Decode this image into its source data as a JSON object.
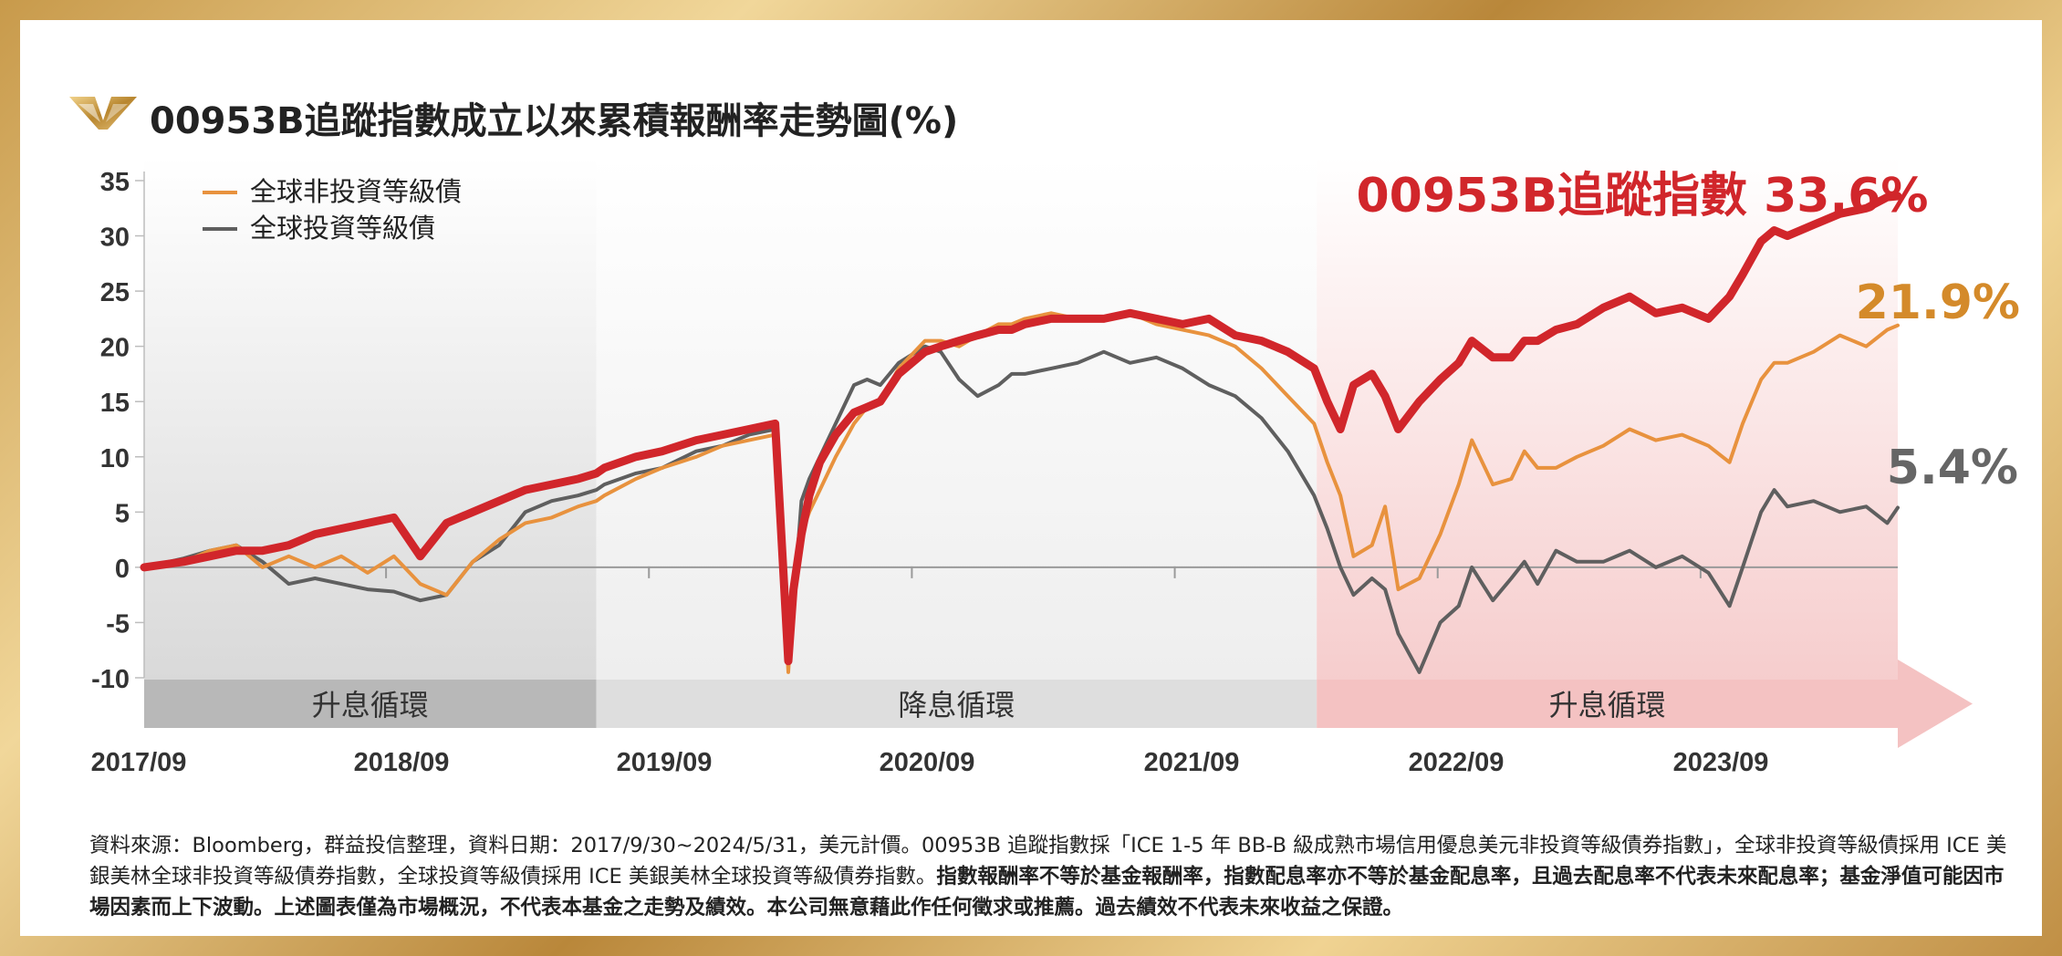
{
  "title": "00953B追蹤指數成立以來累積報酬率走勢圖(%)",
  "footnote": {
    "normal": "資料來源：Bloomberg，群益投信整理，資料日期：2017/9/30~2024/5/31，美元計價。00953B 追蹤指數採「ICE 1-5 年 BB-B 級成熟市場信用優息美元非投資等級債券指數」，全球非投資等級債採用 ICE 美銀美林全球非投資等級債券指數，全球投資等級債採用 ICE 美銀美林全球投資等級債券指數。",
    "bold": "指數報酬率不等於基金報酬率，指數配息率亦不等於基金配息率，且過去配息率不代表未來配息率；基金淨值可能因市場因素而上下波動。上述圖表僅為市場概況，不代表本基金之走勢及績效。本公司無意藉此作任何徵求或推薦。過去績效不代表未來收益之保證。"
  },
  "colors": {
    "index": "#d1262b",
    "high_yield": "#e8923e",
    "investment_grade": "#5f5f5f",
    "hike_zone": "#ececec",
    "cut_zone": "#f4f4f4",
    "red_zone": "#f7d3d3"
  },
  "chart_data": {
    "type": "line",
    "title": "00953B追蹤指數成立以來累積報酬率走勢圖(%)",
    "ylim": [
      -10,
      35
    ],
    "yticks": [
      "35",
      "30",
      "25",
      "20",
      "15",
      "10",
      "5",
      "0",
      "-5",
      "-10"
    ],
    "xlim": [
      2017.75,
      2024.42
    ],
    "xticks": [
      {
        "label": "2017/09",
        "x": 2017.67
      },
      {
        "label": "2018/09",
        "x": 2018.67
      },
      {
        "label": "2019/09",
        "x": 2019.67
      },
      {
        "label": "2020/09",
        "x": 2020.67
      },
      {
        "label": "2021/09",
        "x": 2021.67
      },
      {
        "label": "2022/09",
        "x": 2022.67
      },
      {
        "label": "2023/09",
        "x": 2023.67
      }
    ],
    "legend": {
      "position": "top-left",
      "entries": [
        "全球非投資等級債",
        "全球投資等級債"
      ]
    },
    "regimes": [
      {
        "label": "升息循環",
        "start": 2017.75,
        "end": 2019.47,
        "style": "hike"
      },
      {
        "label": "降息循環",
        "start": 2019.47,
        "end": 2022.21,
        "style": "cut"
      },
      {
        "label": "升息循環",
        "start": 2022.21,
        "end": 2024.42,
        "style": "hike-red"
      }
    ],
    "end_labels": [
      {
        "series": "00953B追蹤指數",
        "text": "00953B追蹤指數 33.6%"
      },
      {
        "series": "全球非投資等級債",
        "text": "21.9%"
      },
      {
        "series": "全球投資等級債",
        "text": "5.4%"
      }
    ],
    "series": [
      {
        "name": "全球投資等級債",
        "key": "investment_grade",
        "x": [
          2017.75,
          2017.9,
          2018.0,
          2018.1,
          2018.2,
          2018.3,
          2018.4,
          2018.5,
          2018.6,
          2018.7,
          2018.8,
          2018.9,
          2019.0,
          2019.1,
          2019.2,
          2019.3,
          2019.4,
          2019.47,
          2019.5,
          2019.62,
          2019.72,
          2019.85,
          2019.95,
          2020.05,
          2020.15,
          2020.2,
          2020.22,
          2020.25,
          2020.28,
          2020.32,
          2020.38,
          2020.45,
          2020.5,
          2020.55,
          2020.62,
          2020.72,
          2020.78,
          2020.85,
          2020.92,
          2021.0,
          2021.05,
          2021.1,
          2021.2,
          2021.3,
          2021.4,
          2021.5,
          2021.6,
          2021.7,
          2021.8,
          2021.9,
          2022.0,
          2022.1,
          2022.2,
          2022.25,
          2022.3,
          2022.35,
          2022.42,
          2022.47,
          2022.52,
          2022.6,
          2022.68,
          2022.75,
          2022.8,
          2022.88,
          2022.95,
          2023.0,
          2023.05,
          2023.12,
          2023.2,
          2023.3,
          2023.4,
          2023.5,
          2023.6,
          2023.7,
          2023.78,
          2023.83,
          2023.9,
          2023.95,
          2024.0,
          2024.1,
          2024.2,
          2024.3,
          2024.38,
          2024.42
        ],
        "values": [
          0.0,
          0.8,
          1.5,
          2.0,
          0.5,
          -1.5,
          -1.0,
          -1.5,
          -2.0,
          -2.2,
          -3.0,
          -2.5,
          0.5,
          2.0,
          5.0,
          6.0,
          6.5,
          7.0,
          7.5,
          8.5,
          9.0,
          10.5,
          11.0,
          12.0,
          12.5,
          -8.5,
          -3.5,
          6.0,
          8.0,
          10.0,
          13.0,
          16.5,
          17.0,
          16.5,
          18.5,
          20.0,
          19.5,
          17.0,
          15.5,
          16.5,
          17.5,
          17.5,
          18.0,
          18.5,
          19.5,
          18.5,
          19.0,
          18.0,
          16.5,
          15.5,
          13.5,
          10.5,
          6.5,
          3.5,
          0.0,
          -2.5,
          -1.0,
          -2.0,
          -6.0,
          -9.5,
          -5.0,
          -3.5,
          0.0,
          -3.0,
          -1.0,
          0.5,
          -1.5,
          1.5,
          0.5,
          0.5,
          1.5,
          0.0,
          1.0,
          -0.5,
          -3.5,
          0.0,
          5.0,
          7.0,
          5.5,
          6.0,
          5.0,
          5.5,
          4.0,
          5.4
        ]
      },
      {
        "name": "全球非投資等級債",
        "key": "high_yield",
        "x": [
          2017.75,
          2017.9,
          2018.0,
          2018.1,
          2018.2,
          2018.3,
          2018.4,
          2018.5,
          2018.6,
          2018.7,
          2018.8,
          2018.9,
          2019.0,
          2019.1,
          2019.2,
          2019.3,
          2019.4,
          2019.47,
          2019.5,
          2019.62,
          2019.72,
          2019.85,
          2019.95,
          2020.05,
          2020.15,
          2020.2,
          2020.22,
          2020.25,
          2020.28,
          2020.32,
          2020.38,
          2020.45,
          2020.5,
          2020.55,
          2020.62,
          2020.72,
          2020.78,
          2020.85,
          2020.92,
          2021.0,
          2021.05,
          2021.1,
          2021.2,
          2021.3,
          2021.4,
          2021.5,
          2021.6,
          2021.7,
          2021.8,
          2021.9,
          2022.0,
          2022.1,
          2022.2,
          2022.25,
          2022.3,
          2022.35,
          2022.42,
          2022.47,
          2022.52,
          2022.6,
          2022.68,
          2022.75,
          2022.8,
          2022.88,
          2022.95,
          2023.0,
          2023.05,
          2023.12,
          2023.2,
          2023.3,
          2023.4,
          2023.5,
          2023.6,
          2023.7,
          2023.78,
          2023.83,
          2023.9,
          2023.95,
          2024.0,
          2024.1,
          2024.2,
          2024.3,
          2024.38,
          2024.42
        ],
        "values": [
          0.0,
          0.5,
          1.5,
          2.0,
          0.0,
          1.0,
          0.0,
          1.0,
          -0.5,
          1.0,
          -1.5,
          -2.5,
          0.5,
          2.5,
          4.0,
          4.5,
          5.5,
          6.0,
          6.5,
          8.0,
          9.0,
          10.0,
          11.0,
          11.5,
          12.0,
          -9.5,
          -2.0,
          3.0,
          5.0,
          7.0,
          10.0,
          13.0,
          14.5,
          15.0,
          18.0,
          20.5,
          20.5,
          20.0,
          21.0,
          22.0,
          22.0,
          22.5,
          23.0,
          22.5,
          22.5,
          23.0,
          22.0,
          21.5,
          21.0,
          20.0,
          18.0,
          15.5,
          13.0,
          9.5,
          6.5,
          1.0,
          2.0,
          5.5,
          -2.0,
          -1.0,
          3.0,
          7.5,
          11.5,
          7.5,
          8.0,
          10.5,
          9.0,
          9.0,
          10.0,
          11.0,
          12.5,
          11.5,
          12.0,
          11.0,
          9.5,
          13.0,
          17.0,
          18.5,
          18.5,
          19.5,
          21.0,
          20.0,
          21.5,
          21.9
        ]
      },
      {
        "name": "00953B追蹤指數",
        "key": "index",
        "x": [
          2017.75,
          2017.9,
          2018.0,
          2018.1,
          2018.2,
          2018.3,
          2018.4,
          2018.5,
          2018.6,
          2018.7,
          2018.8,
          2018.9,
          2019.0,
          2019.1,
          2019.2,
          2019.3,
          2019.4,
          2019.47,
          2019.5,
          2019.62,
          2019.72,
          2019.85,
          2019.95,
          2020.05,
          2020.15,
          2020.2,
          2020.22,
          2020.25,
          2020.28,
          2020.32,
          2020.38,
          2020.45,
          2020.5,
          2020.55,
          2020.62,
          2020.72,
          2020.78,
          2020.85,
          2020.92,
          2021.0,
          2021.05,
          2021.1,
          2021.2,
          2021.3,
          2021.4,
          2021.5,
          2021.6,
          2021.7,
          2021.8,
          2021.9,
          2022.0,
          2022.1,
          2022.2,
          2022.25,
          2022.3,
          2022.35,
          2022.42,
          2022.47,
          2022.52,
          2022.6,
          2022.68,
          2022.75,
          2022.8,
          2022.88,
          2022.95,
          2023.0,
          2023.05,
          2023.12,
          2023.2,
          2023.3,
          2023.4,
          2023.5,
          2023.6,
          2023.7,
          2023.78,
          2023.83,
          2023.9,
          2023.95,
          2024.0,
          2024.1,
          2024.2,
          2024.3,
          2024.38,
          2024.42
        ],
        "values": [
          0.0,
          0.5,
          1.0,
          1.5,
          1.5,
          2.0,
          3.0,
          3.5,
          4.0,
          4.5,
          1.0,
          4.0,
          5.0,
          6.0,
          7.0,
          7.5,
          8.0,
          8.5,
          9.0,
          10.0,
          10.5,
          11.5,
          12.0,
          12.5,
          13.0,
          -8.5,
          -2.0,
          3.0,
          6.5,
          9.5,
          12.0,
          14.0,
          14.5,
          15.0,
          17.5,
          19.5,
          20.0,
          20.5,
          21.0,
          21.5,
          21.5,
          22.0,
          22.5,
          22.5,
          22.5,
          23.0,
          22.5,
          22.0,
          22.5,
          21.0,
          20.5,
          19.5,
          18.0,
          15.0,
          12.5,
          16.5,
          17.5,
          15.5,
          12.5,
          15.0,
          17.0,
          18.5,
          20.5,
          19.0,
          19.0,
          20.5,
          20.5,
          21.5,
          22.0,
          23.5,
          24.5,
          23.0,
          23.5,
          22.5,
          24.5,
          26.5,
          29.5,
          30.5,
          30.0,
          31.0,
          32.0,
          32.5,
          33.5,
          33.6
        ]
      }
    ]
  }
}
